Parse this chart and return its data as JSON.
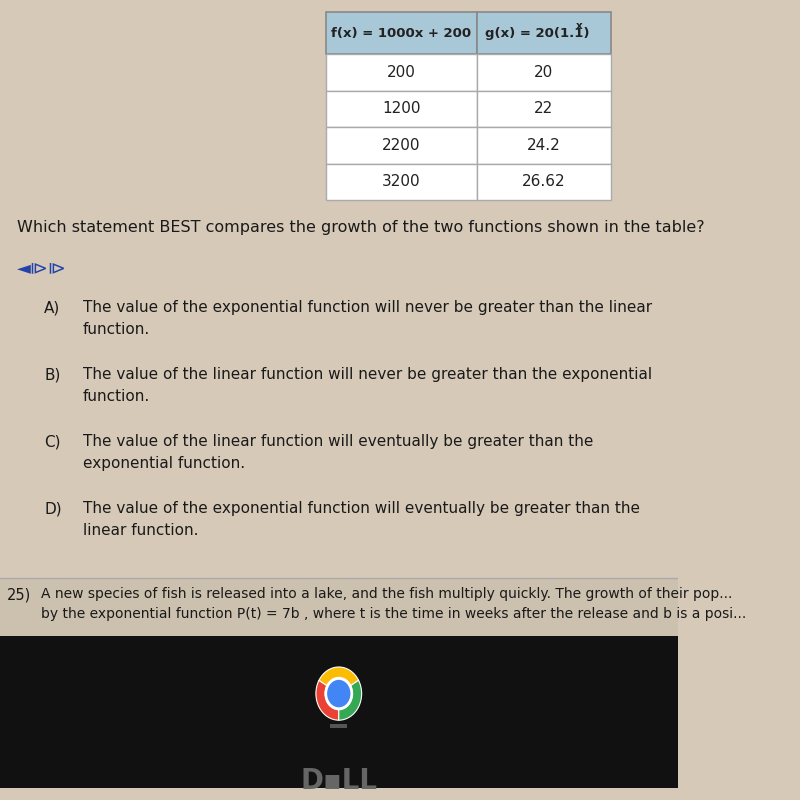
{
  "bg_color": "#d6c9b8",
  "table_header_bg": "#a8c8d8",
  "table_data": [
    [
      "200",
      "20"
    ],
    [
      "1200",
      "22"
    ],
    [
      "2200",
      "24.2"
    ],
    [
      "3200",
      "26.62"
    ]
  ],
  "question": "Which statement BEST compares the growth of the two functions shown in the table?",
  "choices": [
    [
      "A)",
      "The value of the exponential function will never be greater than the linear\nfunction."
    ],
    [
      "B)",
      "The value of the linear function will never be greater than the exponential\nfunction."
    ],
    [
      "C)",
      "The value of the linear function will eventually be greater than the\nexponential function."
    ],
    [
      "D)",
      "The value of the exponential function will eventually be greater than the\nlinear function."
    ]
  ],
  "bottom_label": "25)",
  "bottom_line1": "A new species of fish is released into a lake, and the fish multiply quickly. The growth of their pop...",
  "bottom_line2": "by the exponential function P(t) = 7b , where t is the time in weeks after the release and b is a posi..."
}
